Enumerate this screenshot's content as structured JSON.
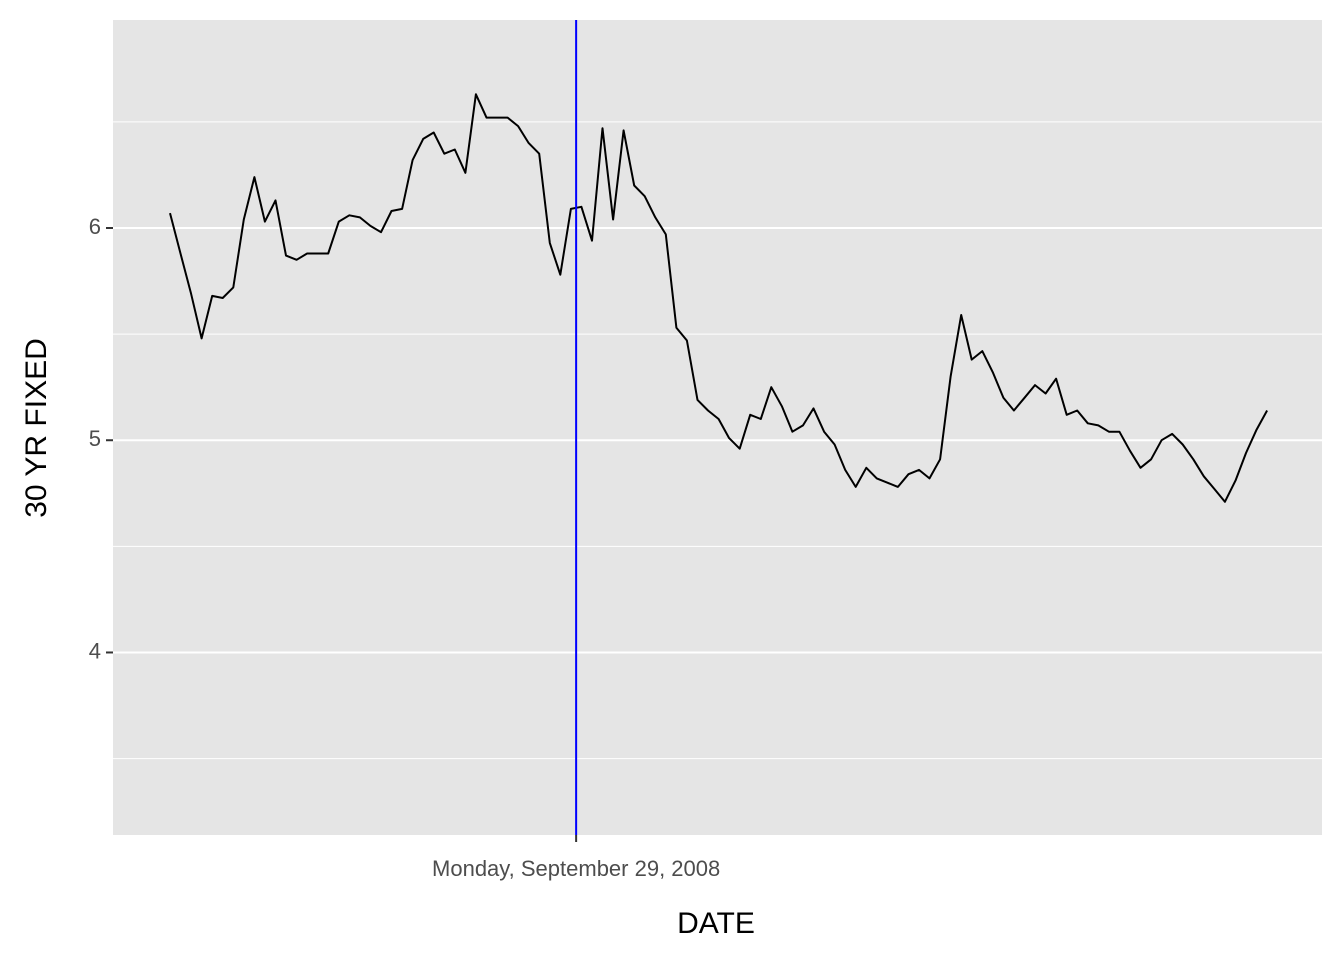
{
  "chart_data": {
    "type": "line",
    "x_label": "DATE",
    "y_label": "30 YR FIXED",
    "x": [
      0,
      1,
      2,
      3,
      4,
      5,
      6,
      7,
      8,
      9,
      10,
      11,
      12,
      13,
      14,
      15,
      16,
      17,
      18,
      19,
      20,
      21,
      22,
      23,
      24,
      25,
      26,
      27,
      28,
      29,
      30,
      31,
      32,
      33,
      34,
      35,
      36,
      37,
      38,
      39,
      40,
      41,
      42,
      43,
      44,
      45,
      46,
      47,
      48,
      49,
      50,
      51,
      52,
      53,
      54,
      55,
      56,
      57,
      58,
      59,
      60,
      61,
      62,
      63,
      64,
      65,
      66,
      67,
      68,
      69,
      70,
      71,
      72,
      73,
      74,
      75,
      76,
      77,
      78,
      79,
      80,
      81,
      82,
      83,
      84,
      85,
      86,
      87,
      88,
      89,
      90,
      91,
      92,
      93,
      94,
      95,
      96,
      97,
      98,
      99,
      100,
      101,
      102,
      103,
      104
    ],
    "series": [
      {
        "color": "#000000",
        "values": [
          6.07,
          5.88,
          5.69,
          5.48,
          5.68,
          5.67,
          5.72,
          6.04,
          6.24,
          6.03,
          6.13,
          5.87,
          5.85,
          5.88,
          5.88,
          5.88,
          6.03,
          6.06,
          6.05,
          6.01,
          5.98,
          6.08,
          6.09,
          6.32,
          6.42,
          6.45,
          6.35,
          6.37,
          6.26,
          6.63,
          6.52,
          6.52,
          6.52,
          6.48,
          6.4,
          6.35,
          5.93,
          5.78,
          6.09,
          6.1,
          5.94,
          6.47,
          6.04,
          6.46,
          6.2,
          6.15,
          6.05,
          5.97,
          5.53,
          5.47,
          5.19,
          5.14,
          5.1,
          5.01,
          4.96,
          5.12,
          5.1,
          5.25,
          5.16,
          5.04,
          5.07,
          5.15,
          5.04,
          4.98,
          4.86,
          4.78,
          4.87,
          4.82,
          4.8,
          4.78,
          4.84,
          4.86,
          4.82,
          4.91,
          5.3,
          5.59,
          5.38,
          5.42,
          5.32,
          5.2,
          5.14,
          5.2,
          5.26,
          5.22,
          5.29,
          5.12,
          5.14,
          5.08,
          5.07,
          5.04,
          5.04,
          4.95,
          4.87,
          4.91,
          5.0,
          5.03,
          4.98,
          4.91,
          4.83,
          4.77,
          4.71,
          4.81,
          4.94,
          5.05,
          5.14
        ]
      }
    ],
    "xlim": [
      -5.4,
      109.2
    ],
    "xticks": [
      {
        "value": 38.5,
        "label": "Monday, September 29, 2008"
      }
    ],
    "vline": 38.5,
    "vline_color": "#0000ff",
    "ylim": [
      3.14,
      6.98
    ],
    "yticks": [
      4,
      5,
      6
    ],
    "minor_yticks": [
      3.5,
      4.5,
      5.5,
      6.5
    ],
    "grid": true,
    "panel_color": "#e5e5e5"
  }
}
